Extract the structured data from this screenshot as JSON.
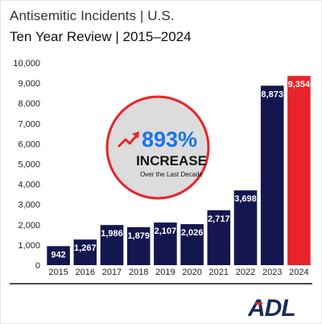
{
  "header": {
    "title": "Antisemitic Incidents | U.S.",
    "subtitle": "Ten Year Review | 2015–2024"
  },
  "callout": {
    "value": "893%",
    "label": "INCREASE",
    "note": "Over the Last Decade",
    "value_color": "#1a73e8",
    "arrow_color": "#e8232a",
    "ring_color": "#e8232a",
    "fill_color": "#dcdcdc"
  },
  "brand": {
    "logo_text": "ADL",
    "color": "#1b2a5c",
    "accent": "#e8232a"
  },
  "colors": {
    "bar_default": "#14174f",
    "bar_highlight": "#e8232a"
  },
  "chart_data": {
    "type": "bar",
    "categories": [
      "2015",
      "2016",
      "2017",
      "2018",
      "2019",
      "2020",
      "2021",
      "2022",
      "2023",
      "2024"
    ],
    "values": [
      942,
      1267,
      1986,
      1879,
      2107,
      2026,
      2717,
      3698,
      8873,
      9354
    ],
    "value_labels": [
      "942",
      "1,267",
      "1,986",
      "1,879",
      "2,107",
      "2,026",
      "2,717",
      "3,698",
      "8,873",
      "9,354"
    ],
    "highlight_index": 9,
    "title": "Antisemitic Incidents | U.S.",
    "xlabel": "",
    "ylabel": "",
    "ylim": [
      0,
      10000
    ],
    "yticks": [
      0,
      1000,
      2000,
      3000,
      4000,
      5000,
      6000,
      7000,
      8000,
      9000,
      10000
    ],
    "ytick_labels": [
      "0",
      "1,000",
      "2,000",
      "3,000",
      "4,000",
      "5,000",
      "6,000",
      "7,000",
      "8,000",
      "9,000",
      "10,000"
    ],
    "grid": false,
    "legend": "none"
  }
}
